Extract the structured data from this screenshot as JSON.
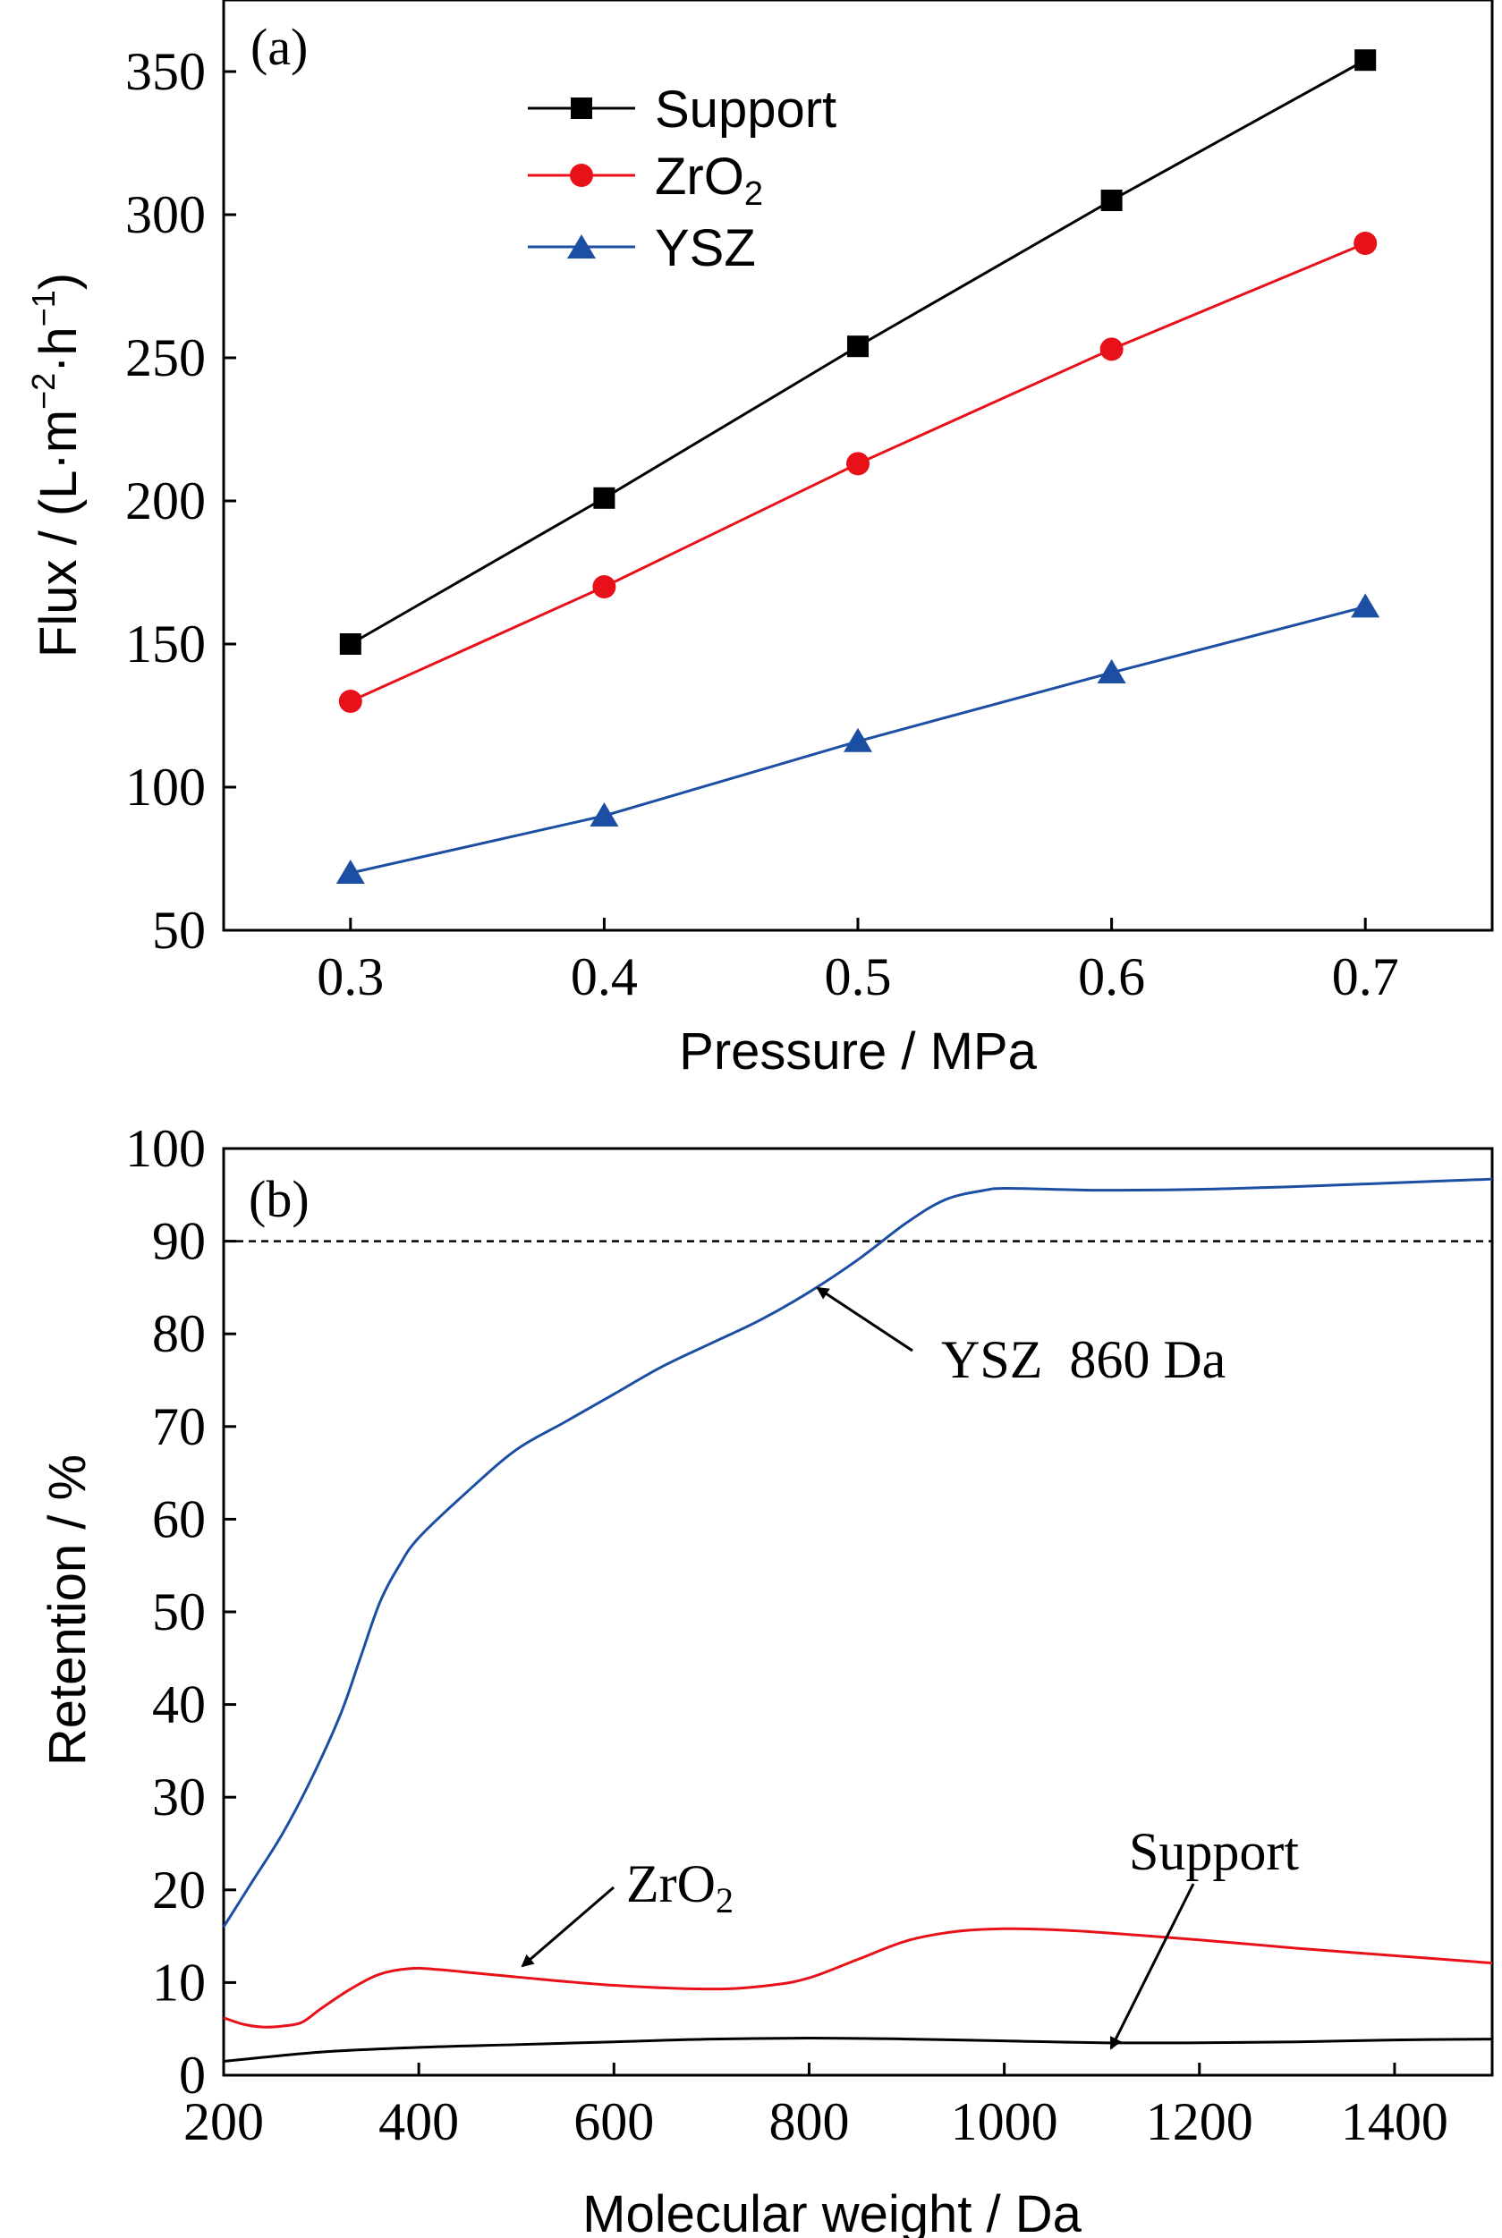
{
  "chart_data": [
    {
      "type": "line",
      "panel_label": "(a)",
      "xlabel": "Pressure / MPa",
      "ylabel": "Flux / (L·m",
      "ylabel_sup1": "−2",
      "ylabel_mid": "·h",
      "ylabel_sup2": "−1",
      "ylabel_end": ")",
      "xlim": [
        0.25,
        0.75
      ],
      "ylim": [
        50,
        375
      ],
      "x": [
        0.3,
        0.4,
        0.5,
        0.6,
        0.7
      ],
      "xticks": [
        0.3,
        0.4,
        0.5,
        0.6,
        0.7
      ],
      "xtick_labels": [
        "0.3",
        "0.4",
        "0.5",
        "0.6",
        "0.7"
      ],
      "yticks": [
        50,
        100,
        150,
        200,
        250,
        300,
        350
      ],
      "ytick_labels": [
        "50",
        "100",
        "150",
        "200",
        "250",
        "300",
        "350"
      ],
      "legend_position": "top-center",
      "series": [
        {
          "name": "Support",
          "marker": "square",
          "color": "#000000",
          "values": [
            150,
            201,
            254,
            305,
            354
          ]
        },
        {
          "name": "ZrO",
          "name_sub": "2",
          "marker": "circle",
          "color": "#e8111a",
          "values": [
            130,
            170,
            213,
            253,
            290
          ]
        },
        {
          "name": "YSZ",
          "marker": "triangle",
          "color": "#1c4fa3",
          "values": [
            70,
            90,
            116,
            140,
            163
          ]
        }
      ]
    },
    {
      "type": "line",
      "panel_label": "(b)",
      "xlabel": "Molecular weight / Da",
      "ylabel": "Retention / %",
      "xlim": [
        200,
        1500
      ],
      "ylim": [
        0,
        100
      ],
      "xticks": [
        200,
        400,
        600,
        800,
        1000,
        1200,
        1400
      ],
      "xtick_labels": [
        "200",
        "400",
        "600",
        "800",
        "1000",
        "1200",
        "1400"
      ],
      "yticks": [
        0,
        10,
        20,
        30,
        40,
        50,
        60,
        70,
        80,
        90,
        100
      ],
      "ytick_labels": [
        "0",
        "10",
        "20",
        "30",
        "40",
        "50",
        "60",
        "70",
        "80",
        "90",
        "100"
      ],
      "reference_line": {
        "y": 90,
        "style": "dashed"
      },
      "series": [
        {
          "name": "YSZ",
          "color": "#1c4fa3",
          "x": [
            200,
            230,
            260,
            290,
            320,
            340,
            360,
            380,
            400,
            450,
            500,
            550,
            600,
            650,
            700,
            750,
            800,
            850,
            900,
            940,
            980,
            1000,
            1050,
            1100,
            1200,
            1300,
            1400,
            1500
          ],
          "y": [
            16,
            21,
            26,
            32,
            39,
            45,
            51,
            55,
            58,
            63,
            67.5,
            70.5,
            73.5,
            76.5,
            79,
            81.5,
            84.5,
            88,
            92,
            94.5,
            95.5,
            95.7,
            95.6,
            95.5,
            95.6,
            95.9,
            96.3,
            96.7
          ]
        },
        {
          "name": "ZrO",
          "name_sub": "2",
          "color": "#e8111a",
          "x": [
            200,
            220,
            240,
            260,
            280,
            300,
            330,
            360,
            390,
            420,
            500,
            600,
            700,
            760,
            800,
            850,
            900,
            950,
            1000,
            1050,
            1100,
            1200,
            1300,
            1400,
            1500
          ],
          "y": [
            6.2,
            5.5,
            5.2,
            5.3,
            5.7,
            7.2,
            9.3,
            10.9,
            11.5,
            11.4,
            10.6,
            9.7,
            9.3,
            9.7,
            10.5,
            12.5,
            14.5,
            15.5,
            15.8,
            15.7,
            15.4,
            14.6,
            13.7,
            12.9,
            12.1
          ]
        },
        {
          "name": "Support",
          "color": "#000000",
          "x": [
            200,
            300,
            400,
            500,
            600,
            700,
            800,
            900,
            1000,
            1100,
            1200,
            1300,
            1400,
            1500
          ],
          "y": [
            1.5,
            2.5,
            3.0,
            3.3,
            3.6,
            3.9,
            4.0,
            3.9,
            3.7,
            3.5,
            3.5,
            3.6,
            3.8,
            3.9
          ]
        }
      ],
      "annotations": [
        {
          "text": "YSZ  860 Da",
          "points_to": [
            860,
            82
          ]
        },
        {
          "text": "ZrO",
          "text_sub": "2",
          "points_to": [
            500,
            11
          ]
        },
        {
          "text": "Support",
          "points_to": [
            1100,
            3.6
          ]
        }
      ]
    }
  ]
}
